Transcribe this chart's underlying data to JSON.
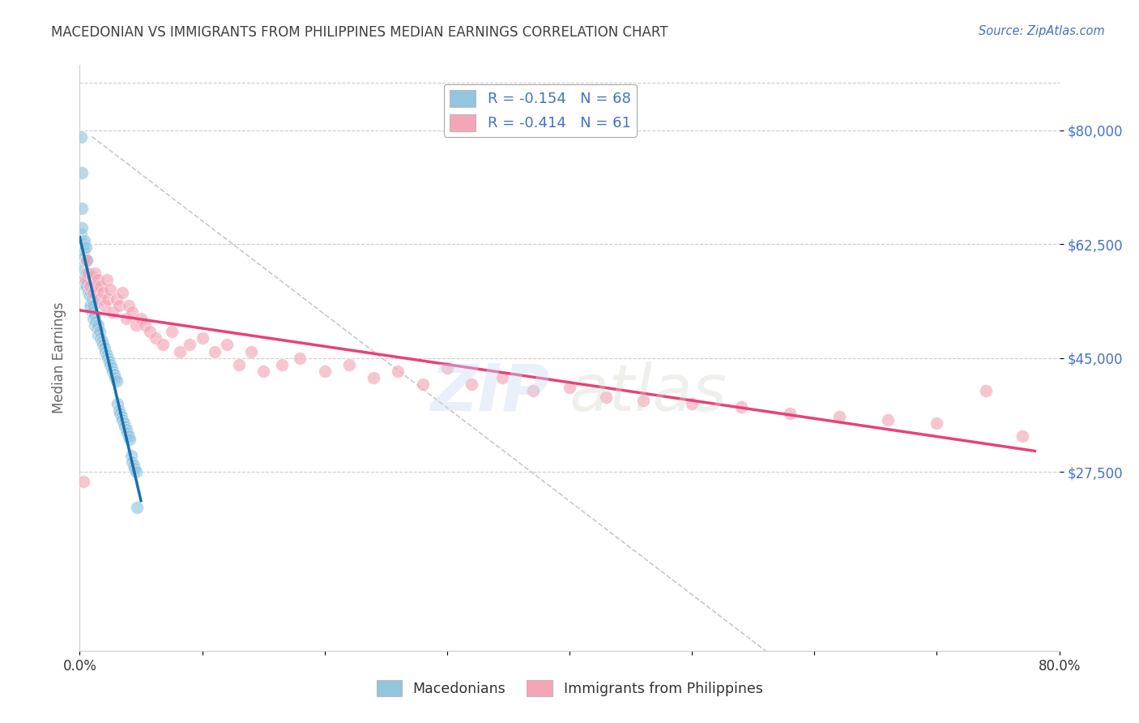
{
  "title": "MACEDONIAN VS IMMIGRANTS FROM PHILIPPINES MEDIAN EARNINGS CORRELATION CHART",
  "source": "Source: ZipAtlas.com",
  "ylabel": "Median Earnings",
  "xlim": [
    0.0,
    0.8
  ],
  "ylim": [
    0,
    90000
  ],
  "yticks": [
    27500,
    45000,
    62500,
    80000
  ],
  "ytick_labels": [
    "$27,500",
    "$45,000",
    "$62,500",
    "$80,000"
  ],
  "xticks": [
    0.0,
    0.1,
    0.2,
    0.3,
    0.4,
    0.5,
    0.6,
    0.7,
    0.8
  ],
  "xtick_labels": [
    "0.0%",
    "",
    "",
    "",
    "",
    "",
    "",
    "",
    "80.0%"
  ],
  "legend_label_1": "R = -0.154   N = 68",
  "legend_label_2": "R = -0.414   N = 61",
  "legend_label_bottom_1": "Macedonians",
  "legend_label_bottom_2": "Immigrants from Philippines",
  "color_blue": "#92c5de",
  "color_pink": "#f4a6b8",
  "color_trend_blue": "#1a6faf",
  "color_trend_pink": "#e8417a",
  "color_dashed": "#bbbbbb",
  "watermark_zip": "ZIP",
  "watermark_atlas": "atlas",
  "background_color": "#ffffff",
  "title_color": "#404040",
  "axis_label_color": "#666666",
  "ytick_color": "#4472c4",
  "macedonian_x": [
    0.001,
    0.001,
    0.002,
    0.002,
    0.002,
    0.003,
    0.003,
    0.003,
    0.003,
    0.004,
    0.004,
    0.004,
    0.005,
    0.005,
    0.005,
    0.005,
    0.006,
    0.006,
    0.006,
    0.007,
    0.007,
    0.008,
    0.008,
    0.008,
    0.009,
    0.009,
    0.01,
    0.01,
    0.011,
    0.011,
    0.012,
    0.012,
    0.013,
    0.014,
    0.015,
    0.015,
    0.016,
    0.017,
    0.018,
    0.019,
    0.02,
    0.021,
    0.022,
    0.023,
    0.024,
    0.025,
    0.026,
    0.027,
    0.028,
    0.029,
    0.03,
    0.031,
    0.032,
    0.033,
    0.034,
    0.035,
    0.036,
    0.037,
    0.038,
    0.039,
    0.04,
    0.041,
    0.042,
    0.043,
    0.044,
    0.045,
    0.046,
    0.047
  ],
  "macedonian_y": [
    79000,
    64000,
    73500,
    68000,
    65000,
    62500,
    61500,
    60000,
    58500,
    63000,
    60500,
    57000,
    62000,
    60000,
    58000,
    56000,
    60000,
    58000,
    56000,
    57000,
    55000,
    56000,
    54500,
    53000,
    55000,
    53000,
    54000,
    52000,
    53000,
    51000,
    51500,
    50000,
    50500,
    49500,
    50000,
    48500,
    49000,
    48000,
    47500,
    47000,
    46500,
    46000,
    45500,
    45000,
    44500,
    44000,
    43500,
    43000,
    42500,
    42000,
    41500,
    38000,
    37000,
    36500,
    36000,
    35500,
    35000,
    34500,
    34000,
    33500,
    33000,
    32500,
    30000,
    29000,
    28500,
    28000,
    27500,
    22000
  ],
  "philippines_x": [
    0.003,
    0.005,
    0.006,
    0.007,
    0.008,
    0.01,
    0.011,
    0.012,
    0.013,
    0.015,
    0.016,
    0.017,
    0.019,
    0.02,
    0.022,
    0.023,
    0.025,
    0.027,
    0.03,
    0.032,
    0.035,
    0.038,
    0.04,
    0.043,
    0.046,
    0.05,
    0.053,
    0.057,
    0.062,
    0.068,
    0.075,
    0.082,
    0.09,
    0.1,
    0.11,
    0.12,
    0.13,
    0.14,
    0.15,
    0.165,
    0.18,
    0.2,
    0.22,
    0.24,
    0.26,
    0.28,
    0.3,
    0.32,
    0.345,
    0.37,
    0.4,
    0.43,
    0.46,
    0.5,
    0.54,
    0.58,
    0.62,
    0.66,
    0.7,
    0.74,
    0.77
  ],
  "philippines_y": [
    26000,
    57000,
    60000,
    58000,
    56000,
    57500,
    55000,
    58000,
    56000,
    57000,
    54000,
    56000,
    55000,
    53000,
    57000,
    54000,
    55500,
    52000,
    54000,
    53000,
    55000,
    51000,
    53000,
    52000,
    50000,
    51000,
    50000,
    49000,
    48000,
    47000,
    49000,
    46000,
    47000,
    48000,
    46000,
    47000,
    44000,
    46000,
    43000,
    44000,
    45000,
    43000,
    44000,
    42000,
    43000,
    41000,
    43500,
    41000,
    42000,
    40000,
    40500,
    39000,
    38500,
    38000,
    37500,
    36500,
    36000,
    35500,
    35000,
    40000,
    33000
  ]
}
